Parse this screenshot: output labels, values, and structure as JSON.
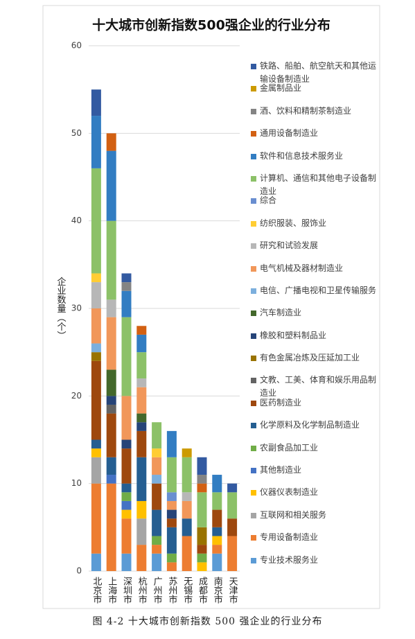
{
  "chart_data": {
    "type": "stacked_bar",
    "title": "十大城市创新指数500强企业的行业分布",
    "y_label": "企业数量（个）",
    "caption": "图 4-2   十大城市创新指数 500 强企业的行业分布",
    "categories": [
      "北京市",
      "上海市",
      "深圳市",
      "杭州市",
      "广州市",
      "苏州市",
      "无锡市",
      "成都市",
      "南京市",
      "天津市"
    ],
    "ylim": [
      0,
      60
    ],
    "yticks": [
      0,
      10,
      20,
      30,
      40,
      50,
      60
    ],
    "grid": true,
    "series": [
      {
        "name": "专业技术服务业",
        "color": "#5b9bd5",
        "values": [
          2,
          0,
          2,
          0,
          2,
          0,
          0,
          0,
          2,
          0
        ]
      },
      {
        "name": "专用设备制造业",
        "color": "#ed7d31",
        "values": [
          8,
          10,
          4,
          3,
          1,
          1,
          4,
          0,
          1,
          4
        ]
      },
      {
        "name": "互联网和相关服务",
        "color": "#a5a5a5",
        "values": [
          3,
          0,
          0,
          3,
          0,
          0,
          0,
          0,
          0,
          0
        ]
      },
      {
        "name": "仪器仪表制造业",
        "color": "#ffc000",
        "values": [
          1,
          0,
          1,
          2,
          0,
          0,
          0,
          1,
          1,
          0
        ]
      },
      {
        "name": "其他制造业",
        "color": "#4472c4",
        "values": [
          0,
          1,
          1,
          0,
          0,
          0,
          0,
          0,
          0,
          0
        ]
      },
      {
        "name": "农副食品加工业",
        "color": "#70ad47",
        "values": [
          0,
          0,
          1,
          0,
          1,
          1,
          0,
          1,
          0,
          0
        ]
      },
      {
        "name": "化学原料及化学制品制造业",
        "color": "#255e91",
        "values": [
          1,
          2,
          1,
          5,
          3,
          3,
          2,
          0,
          1,
          0
        ]
      },
      {
        "name": "医药制造业",
        "color": "#9e480e",
        "values": [
          9,
          5,
          4,
          3,
          3,
          1,
          0,
          1,
          2,
          2
        ]
      },
      {
        "name": "文教、工美、体育和娱乐用品制造业",
        "color": "#636363",
        "values": [
          0,
          1,
          0,
          0,
          0,
          0,
          0,
          0,
          0,
          0
        ]
      },
      {
        "name": "有色金属冶炼及压延加工业",
        "color": "#997300",
        "values": [
          1,
          0,
          0,
          0,
          0,
          0,
          0,
          2,
          0,
          0
        ]
      },
      {
        "name": "橡胶和塑料制品业",
        "color": "#264478",
        "values": [
          0,
          1,
          1,
          1,
          0,
          1,
          0,
          0,
          0,
          0
        ]
      },
      {
        "name": "汽车制造业",
        "color": "#43682b",
        "values": [
          0,
          3,
          0,
          1,
          0,
          0,
          0,
          0,
          0,
          0
        ]
      },
      {
        "name": "电信、广播电视和卫星传输服务",
        "color": "#7cafdd",
        "values": [
          1,
          0,
          0,
          0,
          1,
          0,
          0,
          0,
          0,
          0
        ]
      },
      {
        "name": "电气机械及器材制造业",
        "color": "#f1975a",
        "values": [
          4,
          6,
          5,
          3,
          2,
          1,
          2,
          0,
          0,
          0
        ]
      },
      {
        "name": "研究和试验发展",
        "color": "#b7b7b7",
        "values": [
          3,
          2,
          0,
          1,
          0,
          0,
          1,
          0,
          0,
          0
        ]
      },
      {
        "name": "纺织服装、服饰业",
        "color": "#ffcd33",
        "values": [
          1,
          0,
          0,
          0,
          1,
          0,
          0,
          0,
          0,
          0
        ]
      },
      {
        "name": "综合",
        "color": "#698ed0",
        "values": [
          0,
          0,
          0,
          0,
          0,
          1,
          0,
          0,
          0,
          0
        ]
      },
      {
        "name": "计算机、通信和其他电子设备制造业",
        "color": "#8cc168",
        "values": [
          12,
          9,
          9,
          3,
          3,
          4,
          4,
          4,
          2,
          3
        ]
      },
      {
        "name": "软件和信息技术服务业",
        "color": "#327dc2",
        "values": [
          6,
          8,
          3,
          2,
          0,
          3,
          0,
          0,
          2,
          0
        ]
      },
      {
        "name": "通用设备制造业",
        "color": "#d26012",
        "values": [
          0,
          2,
          0,
          1,
          0,
          0,
          0,
          1,
          0,
          0
        ]
      },
      {
        "name": "酒、饮料和精制茶制造业",
        "color": "#848484",
        "values": [
          0,
          0,
          1,
          0,
          0,
          0,
          0,
          1,
          0,
          0
        ]
      },
      {
        "name": "金属制品业",
        "color": "#cc9a00",
        "values": [
          0,
          0,
          0,
          0,
          0,
          0,
          1,
          0,
          0,
          0
        ]
      },
      {
        "name": "铁路、船舶、航空航天和其他运输设备制造业",
        "color": "#335aa1",
        "values": [
          3,
          0,
          1,
          0,
          0,
          0,
          0,
          2,
          0,
          1
        ]
      }
    ]
  }
}
